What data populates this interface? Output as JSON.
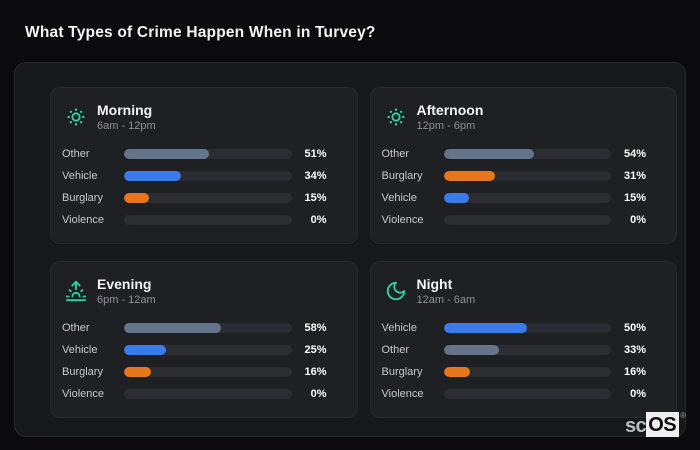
{
  "page": {
    "title": "What Types of Crime Happen When in Turvey?"
  },
  "logo": {
    "prefix": "sc",
    "suffix": "OS",
    "registered": "®"
  },
  "colors": {
    "page_bg": "#0b0b0d",
    "panel_bg": "#17181b",
    "card_bg": "#1f2024",
    "track": "#2b2d32",
    "accent": "#2ed3a3",
    "title_text": "#f4f5f7",
    "muted_text": "#8b929c",
    "label_text": "#c6cad1",
    "category_colors": {
      "Other": "#64748b",
      "Vehicle": "#3b7bea",
      "Burglary": "#e8761a",
      "Violence": "#ef4444"
    }
  },
  "chart_data": [
    {
      "type": "bar",
      "orientation": "horizontal",
      "icon": "sun-icon",
      "title": "Morning",
      "subtitle": "6am - 12pm",
      "unit": "%",
      "xlim": [
        0,
        100
      ],
      "categories": [
        "Other",
        "Vehicle",
        "Burglary",
        "Violence"
      ],
      "values": [
        51,
        34,
        15,
        0
      ]
    },
    {
      "type": "bar",
      "orientation": "horizontal",
      "icon": "sun-icon",
      "title": "Afternoon",
      "subtitle": "12pm - 6pm",
      "unit": "%",
      "xlim": [
        0,
        100
      ],
      "categories": [
        "Other",
        "Burglary",
        "Vehicle",
        "Violence"
      ],
      "values": [
        54,
        31,
        15,
        0
      ]
    },
    {
      "type": "bar",
      "orientation": "horizontal",
      "icon": "sunrise-icon",
      "title": "Evening",
      "subtitle": "6pm - 12am",
      "unit": "%",
      "xlim": [
        0,
        100
      ],
      "categories": [
        "Other",
        "Vehicle",
        "Burglary",
        "Violence"
      ],
      "values": [
        58,
        25,
        16,
        0
      ]
    },
    {
      "type": "bar",
      "orientation": "horizontal",
      "icon": "moon-icon",
      "title": "Night",
      "subtitle": "12am - 6am",
      "unit": "%",
      "xlim": [
        0,
        100
      ],
      "categories": [
        "Vehicle",
        "Other",
        "Burglary",
        "Violence"
      ],
      "values": [
        50,
        33,
        16,
        0
      ]
    }
  ]
}
